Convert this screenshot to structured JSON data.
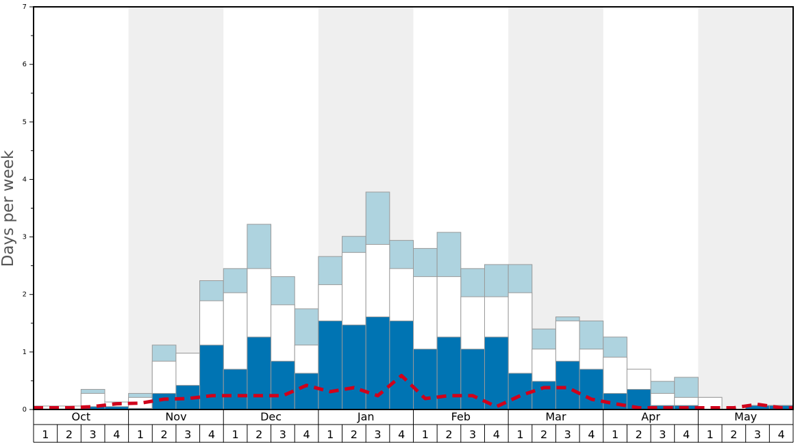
{
  "chart_data": {
    "type": "bar",
    "ylabel": "Days per week",
    "ylim": [
      0,
      7
    ],
    "y_ticks": [
      "0",
      "1",
      "2",
      "3",
      "4",
      "5",
      "6",
      "7"
    ],
    "months": [
      "Oct",
      "Nov",
      "Dec",
      "Jan",
      "Feb",
      "Mar",
      "Apr",
      "May"
    ],
    "weeks": [
      "1",
      "2",
      "3",
      "4"
    ],
    "shaded_months": [
      "Nov",
      "Jan",
      "Mar",
      "May"
    ],
    "colors": {
      "dark_blue": "#0074b3",
      "white": "#ffffff",
      "light_blue": "#aed3df",
      "dashed_line": "#d0021b",
      "band": "#efefef"
    },
    "series": [
      {
        "values": [
          0.01,
          0.01,
          0.05,
          0.05,
          0.02,
          0.28,
          0.42,
          1.12,
          0.7,
          1.26,
          0.84,
          0.63,
          1.54,
          1.47,
          1.61,
          1.54,
          1.05,
          1.26,
          1.05,
          1.26,
          0.63,
          0.49,
          0.84,
          0.7,
          0.28,
          0.35,
          0.07,
          0.07,
          0.0,
          0.0,
          0.07,
          0.07
        ]
      },
      {
        "values": [
          0.06,
          0.06,
          0.28,
          0.13,
          0.21,
          0.84,
          0.98,
          1.89,
          2.03,
          2.45,
          1.82,
          1.12,
          2.17,
          2.73,
          2.87,
          2.45,
          2.31,
          2.31,
          1.96,
          1.96,
          2.03,
          1.05,
          1.54,
          1.05,
          0.91,
          0.7,
          0.28,
          0.21,
          0.21,
          0.0,
          0.07,
          0.07
        ]
      },
      {
        "values": [
          0.06,
          0.06,
          0.35,
          0.13,
          0.28,
          1.12,
          0.98,
          2.24,
          2.45,
          3.22,
          2.31,
          1.75,
          2.66,
          3.01,
          3.78,
          2.94,
          2.8,
          3.08,
          2.45,
          2.52,
          2.52,
          1.4,
          1.61,
          1.54,
          1.26,
          0.7,
          0.49,
          0.56,
          0.21,
          0.0,
          0.07,
          0.07
        ]
      },
      {
        "values": [
          0.03,
          0.03,
          0.05,
          0.1,
          0.11,
          0.18,
          0.19,
          0.24,
          0.24,
          0.24,
          0.24,
          0.42,
          0.31,
          0.38,
          0.24,
          0.59,
          0.19,
          0.24,
          0.24,
          0.05,
          0.24,
          0.38,
          0.38,
          0.18,
          0.1,
          0.03,
          0.03,
          0.03,
          0.03,
          0.03,
          0.09,
          0.03
        ]
      }
    ]
  }
}
